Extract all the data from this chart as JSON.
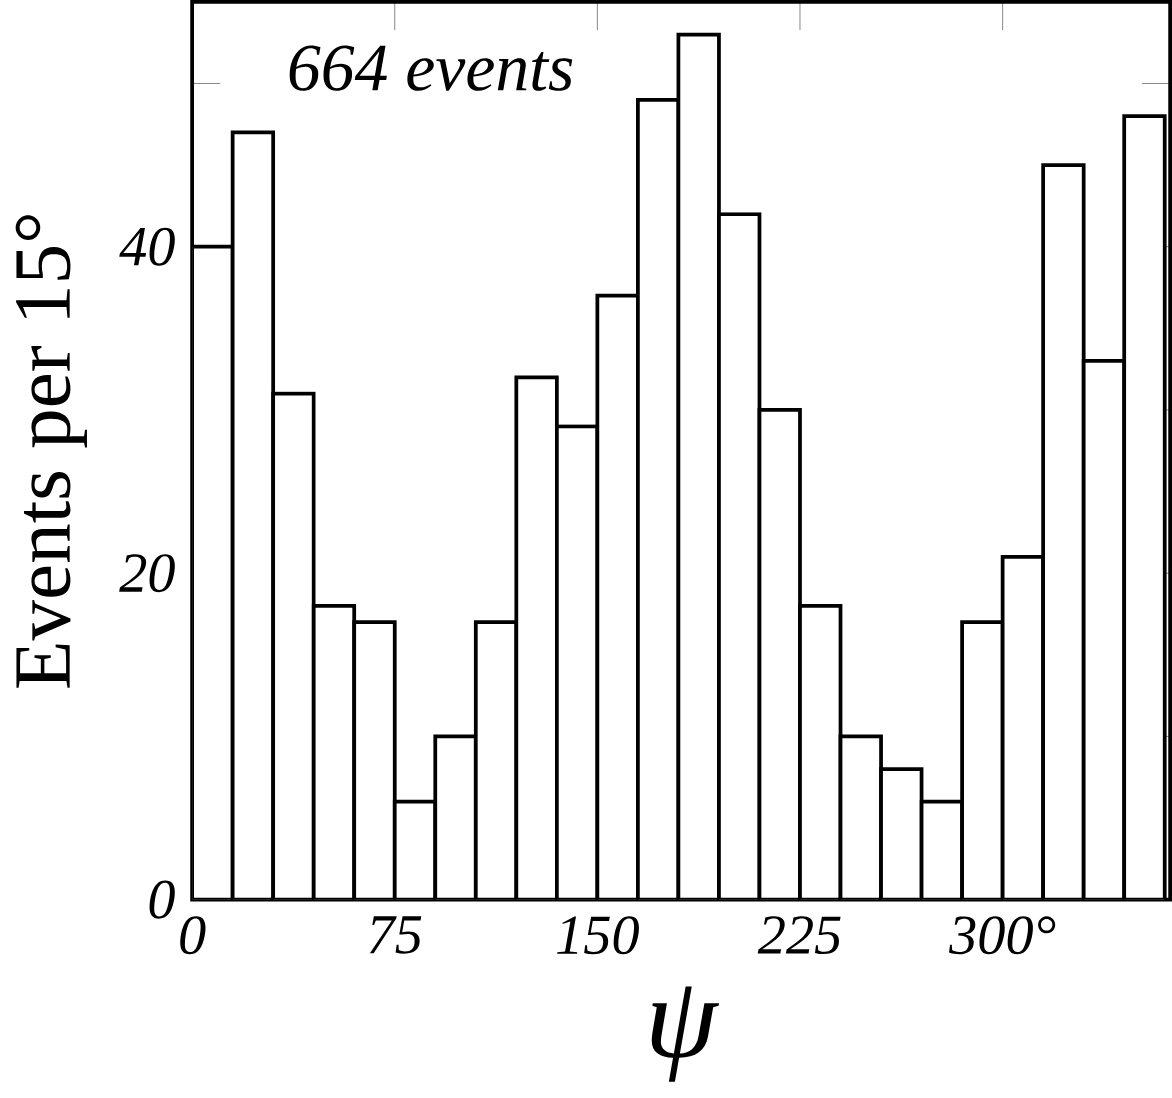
{
  "chart_data": {
    "type": "histogram",
    "xlabel": "ψ",
    "ylabel": "Events per 15°",
    "annotations": [
      "664 events"
    ],
    "bins": [
      0,
      15,
      30,
      45,
      60,
      75,
      90,
      105,
      120,
      135,
      150,
      165,
      180,
      195,
      210,
      225,
      240,
      255,
      270,
      285,
      300,
      315,
      330,
      345,
      360
    ],
    "values": [
      40,
      47,
      31,
      18,
      17,
      6,
      10,
      17,
      32,
      29,
      37,
      49,
      53,
      42,
      30,
      18,
      10,
      8,
      6,
      17,
      21,
      45,
      33,
      48
    ],
    "color": "#000000",
    "xlim": [
      0,
      362
    ],
    "ylim": [
      0,
      55
    ],
    "xticks": [
      0,
      75,
      150,
      225,
      {
        "value": 300,
        "label": "300°"
      }
    ],
    "yticks": [
      0,
      {
        "value": 10,
        "label": null
      },
      20,
      {
        "value": 30,
        "label": null
      },
      40,
      {
        "value": 50,
        "label": null
      }
    ],
    "grid": false
  }
}
